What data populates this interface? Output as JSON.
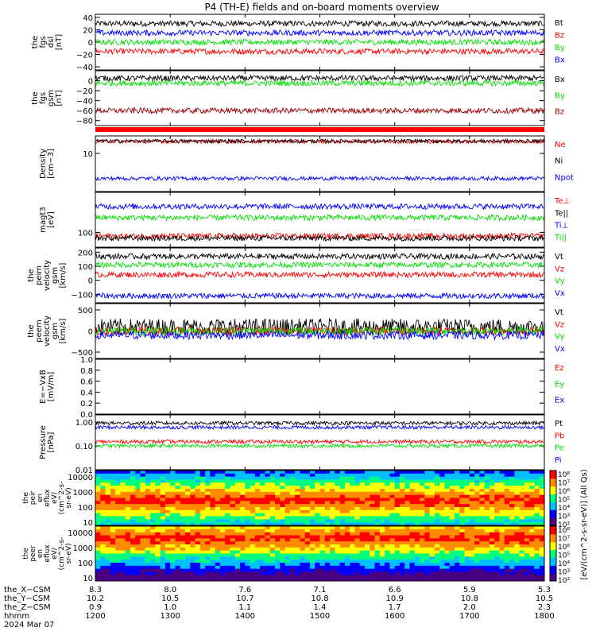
{
  "title": "P4 (TH-E) fields and on-board moments overview",
  "colors": {
    "black": "#000000",
    "red": "#ff0000",
    "blue": "#0000ff",
    "green": "#00e000",
    "darkred": "#a00000",
    "colorbar": [
      "#4b0082",
      "#0000ff",
      "#00bfff",
      "#00ff7f",
      "#ffff00",
      "#ff8c00",
      "#ff0000"
    ]
  },
  "chart_data": [
    {
      "type": "line",
      "panel": "fgs-dsl",
      "ylabel": [
        "the",
        "fgs",
        "dsl",
        "[nT]"
      ],
      "ylim": [
        -45,
        45
      ],
      "ticks": [
        "40",
        "20",
        "0",
        "−20",
        "−40"
      ],
      "series": [
        {
          "name": "Bt",
          "color": "#000000",
          "level": 30
        },
        {
          "name": "Bz",
          "color": "#ff0000",
          "level": -15
        },
        {
          "name": "By",
          "color": "#00e000",
          "level": 0
        },
        {
          "name": "Bx",
          "color": "#0000ff",
          "level": 15
        }
      ]
    },
    {
      "type": "line",
      "panel": "fgs-gsm",
      "ylabel": [
        "the",
        "fgs",
        "gsm",
        "[nT]"
      ],
      "ylim": [
        -90,
        20
      ],
      "ticks": [
        "0",
        "−20",
        "−40",
        "−60",
        "−80"
      ],
      "series": [
        {
          "name": "Bx",
          "color": "#000000",
          "level": 5
        },
        {
          "name": "By",
          "color": "#00e000",
          "level": -5
        },
        {
          "name": "Bz",
          "color": "#a00000",
          "level": -60
        }
      ]
    },
    {
      "type": "line",
      "panel": "density",
      "ylabel": [
        "Density",
        "[cm−3]"
      ],
      "scale": "log",
      "ylim": [
        0.3,
        50
      ],
      "ticks": [
        "10"
      ],
      "series": [
        {
          "name": "Ne",
          "color": "#ff0000",
          "level": 30
        },
        {
          "name": "Ni",
          "color": "#000000",
          "level": 31
        },
        {
          "name": "Npot",
          "color": "#0000ff",
          "level": 1.0
        }
      ]
    },
    {
      "type": "line",
      "panel": "temperature",
      "ylabel": [
        "magt3",
        "[eV]"
      ],
      "scale": "log",
      "ylim": [
        40,
        1200
      ],
      "ticks": [
        "100"
      ],
      "series": [
        {
          "name": "Te⊥",
          "color": "#ff0000",
          "level": 80
        },
        {
          "name": "Te||",
          "color": "#000000",
          "level": 70
        },
        {
          "name": "Ti⊥",
          "color": "#0000ff",
          "level": 500
        },
        {
          "name": "Ti||",
          "color": "#00e000",
          "level": 250
        }
      ]
    },
    {
      "type": "line",
      "panel": "peim-velocity",
      "ylabel": [
        "the",
        "peim",
        "velocity",
        "gsm",
        "[km/s]"
      ],
      "ylim": [
        -160,
        230
      ],
      "ticks": [
        "200",
        "100",
        "0",
        "−100"
      ],
      "series": [
        {
          "name": "Vt",
          "color": "#000000",
          "level": 170
        },
        {
          "name": "Vz",
          "color": "#ff0000",
          "level": 40
        },
        {
          "name": "Vy",
          "color": "#00e000",
          "level": 110
        },
        {
          "name": "Vx",
          "color": "#0000ff",
          "level": -110
        }
      ]
    },
    {
      "type": "line",
      "panel": "peem-velocity",
      "ylabel": [
        "the",
        "peem",
        "velocity",
        "gsm",
        "[km/s]"
      ],
      "ylim": [
        -650,
        650
      ],
      "ticks": [
        "500",
        "0",
        "−500"
      ],
      "series": [
        {
          "name": "Vt",
          "color": "#000000",
          "level": 100
        },
        {
          "name": "Vz",
          "color": "#ff0000",
          "level": 0
        },
        {
          "name": "Vy",
          "color": "#00e000",
          "level": 0
        },
        {
          "name": "Vx",
          "color": "#0000ff",
          "level": -100
        }
      ]
    },
    {
      "type": "line",
      "panel": "efield",
      "ylabel": [
        "E=−VxB",
        "[mV/m]"
      ],
      "ylim": [
        0.0,
        1.0
      ],
      "ticks": [
        "1.0",
        "0.8",
        "0.6",
        "0.4",
        "0.2",
        "0.0"
      ],
      "series": [
        {
          "name": "Ez",
          "color": "#ff0000"
        },
        {
          "name": "Ey",
          "color": "#00e000"
        },
        {
          "name": "Ex",
          "color": "#0000ff"
        }
      ]
    },
    {
      "type": "line",
      "panel": "pressure",
      "ylabel": [
        "Pressure",
        "[nPa]"
      ],
      "scale": "log",
      "ylim": [
        0.01,
        2
      ],
      "ticks": [
        "1.00",
        "0.10",
        "0.01"
      ],
      "series": [
        {
          "name": "Pt",
          "color": "#000000",
          "level": 0.9
        },
        {
          "name": "Pb",
          "color": "#ff0000",
          "level": 0.15
        },
        {
          "name": "Pe",
          "color": "#00e000",
          "level": 0.1
        },
        {
          "name": "Pi",
          "color": "#0000ff",
          "level": 0.6
        }
      ]
    },
    {
      "type": "heatmap",
      "panel": "peir",
      "ylabel": [
        "the",
        "peir",
        "en",
        "eflux",
        "eV/",
        "(cm^2-s-",
        "sr-eV)"
      ],
      "ticks": [
        "10000",
        "1000",
        "100",
        "10"
      ],
      "colorbar_ticks": [
        "10⁸",
        "10⁷",
        "10⁶",
        "10⁵",
        "10⁴",
        "10³",
        "10²"
      ],
      "colorbar_label": "[eV/(cm^2-s-sr-eV)] (All Qs)"
    },
    {
      "type": "heatmap",
      "panel": "peer",
      "ylabel": [
        "the",
        "peer",
        "en",
        "eflux",
        "eV/",
        "(cm^2-s-",
        "sr-eV)"
      ],
      "ticks": [
        "10000",
        "1000",
        "100",
        "10"
      ],
      "colorbar_ticks": [
        "10⁸",
        "10⁷",
        "10⁶",
        "10⁵",
        "10⁴",
        "10³",
        "10²"
      ],
      "colorbar_label": "[eV/(cm^2-s-sr-eV)] (All Qs)"
    }
  ],
  "xaxis": {
    "row_labels": [
      "the_X−CSM",
      "the_Y−CSM",
      "the_Z−CSM",
      "hhmm",
      "2024 Mar 07"
    ],
    "columns": [
      {
        "x": "8.3",
        "y": "10.2",
        "z": "0.9",
        "t": "1200"
      },
      {
        "x": "8.0",
        "y": "10.5",
        "z": "1.0",
        "t": "1300"
      },
      {
        "x": "7.6",
        "y": "10.7",
        "z": "1.1",
        "t": "1400"
      },
      {
        "x": "7.1",
        "y": "10.8",
        "z": "1.4",
        "t": "1500"
      },
      {
        "x": "6.6",
        "y": "10.9",
        "z": "1.7",
        "t": "1600"
      },
      {
        "x": "5.9",
        "y": "10.8",
        "z": "2.0",
        "t": "1700"
      },
      {
        "x": "5.3",
        "y": "10.5",
        "z": "2.3",
        "t": "1800"
      }
    ]
  }
}
